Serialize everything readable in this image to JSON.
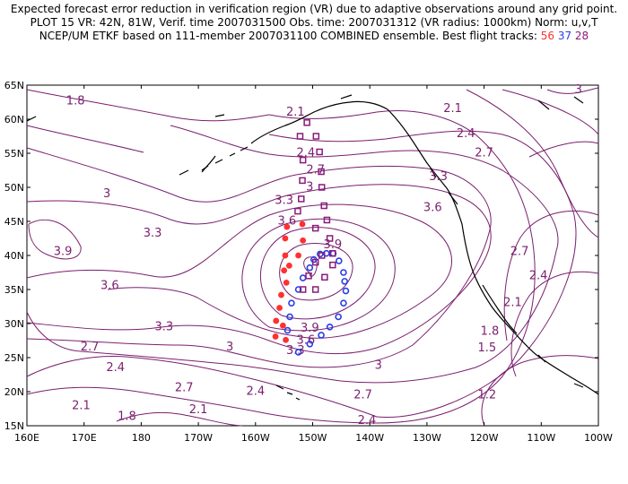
{
  "header": {
    "line1": "Expected forecast error reduction in verification region (VR) due to adaptive observations around any grid point.",
    "line2": "PLOT 15 VR: 42N, 81W, Verif. time 2007031500 Obs. time: 2007031312 (VR radius: 1000km) Norm: u,v,T",
    "line3_prefix": "NCEP/UM ETKF based on 111-member 2007031100 COMBINED ensemble.  Best flight tracks:",
    "track_a": "56",
    "track_b": "37",
    "track_c": "28"
  },
  "colors": {
    "contour": "#7a1f6e",
    "track_56": "#ff3030",
    "track_37": "#2a3ee8",
    "track_28": "#8a1a7a",
    "land": "#000000"
  },
  "map": {
    "lat_labels": [
      "65N",
      "60N",
      "55N",
      "50N",
      "45N",
      "40N",
      "35N",
      "30N",
      "25N",
      "20N",
      "15N"
    ],
    "lon_labels": [
      "160E",
      "170E",
      "180",
      "170W",
      "160W",
      "150W",
      "140W",
      "130W",
      "120W",
      "110W",
      "100W"
    ],
    "lat_range": [
      15,
      65
    ],
    "lon_range": [
      160,
      260
    ]
  },
  "contour_labels": [
    {
      "text": "1.8",
      "lon": 168.5,
      "lat": 62.6
    },
    {
      "text": "2.1",
      "lon": 207.0,
      "lat": 61.0
    },
    {
      "text": "2.1",
      "lon": 234.5,
      "lat": 61.5
    },
    {
      "text": "2.4",
      "lon": 208.8,
      "lat": 55.0
    },
    {
      "text": "2.4",
      "lon": 236.8,
      "lat": 57.8
    },
    {
      "text": "2.7",
      "lon": 210.5,
      "lat": 52.5
    },
    {
      "text": "2.7",
      "lon": 240.0,
      "lat": 55.0
    },
    {
      "text": "3",
      "lon": 209.5,
      "lat": 50.0
    },
    {
      "text": "3",
      "lon": 174.0,
      "lat": 49.0
    },
    {
      "text": "3.3",
      "lon": 205.0,
      "lat": 48.0
    },
    {
      "text": "3.3",
      "lon": 232.0,
      "lat": 51.5
    },
    {
      "text": "3.3",
      "lon": 182.0,
      "lat": 43.2
    },
    {
      "text": "3.6",
      "lon": 205.5,
      "lat": 45.0
    },
    {
      "text": "3.6",
      "lon": 231.0,
      "lat": 47.0
    },
    {
      "text": "3.6",
      "lon": 174.5,
      "lat": 35.5
    },
    {
      "text": "3.9",
      "lon": 166.3,
      "lat": 40.5
    },
    {
      "text": "3.9",
      "lon": 213.5,
      "lat": 41.5
    },
    {
      "text": "3.9",
      "lon": 209.5,
      "lat": 29.3
    },
    {
      "text": "3.6",
      "lon": 208.8,
      "lat": 27.5
    },
    {
      "text": "3.3",
      "lon": 207.0,
      "lat": 26.0
    },
    {
      "text": "3.3",
      "lon": 184.0,
      "lat": 29.5
    },
    {
      "text": "3",
      "lon": 195.5,
      "lat": 26.5
    },
    {
      "text": "3",
      "lon": 221.5,
      "lat": 23.8
    },
    {
      "text": "2.7",
      "lon": 171.0,
      "lat": 26.5
    },
    {
      "text": "2.7",
      "lon": 187.5,
      "lat": 20.5
    },
    {
      "text": "2.7",
      "lon": 218.8,
      "lat": 19.5
    },
    {
      "text": "2.7",
      "lon": 246.2,
      "lat": 40.5
    },
    {
      "text": "2.4",
      "lon": 175.5,
      "lat": 23.5
    },
    {
      "text": "2.4",
      "lon": 200.0,
      "lat": 20.0
    },
    {
      "text": "2.4",
      "lon": 249.5,
      "lat": 37.0
    },
    {
      "text": "2.4",
      "lon": 219.5,
      "lat": 15.7
    },
    {
      "text": "2.1",
      "lon": 169.5,
      "lat": 17.9
    },
    {
      "text": "2.1",
      "lon": 190.0,
      "lat": 17.3
    },
    {
      "text": "2.1",
      "lon": 245.0,
      "lat": 33.0
    },
    {
      "text": "1.8",
      "lon": 177.5,
      "lat": 16.3
    },
    {
      "text": "1.8",
      "lon": 241.0,
      "lat": 28.8
    },
    {
      "text": "1.5",
      "lon": 240.5,
      "lat": 26.4
    },
    {
      "text": "1.2",
      "lon": 240.5,
      "lat": 19.5
    },
    {
      "text": "3",
      "lon": 256.5,
      "lat": 64.3
    }
  ],
  "tracks": {
    "track_56": [
      [
        205.5,
        44.2
      ],
      [
        208.2,
        44.6
      ],
      [
        205.2,
        42.5
      ],
      [
        208.3,
        42.2
      ],
      [
        205.2,
        40.0
      ],
      [
        207.5,
        40.0
      ],
      [
        205.0,
        37.8
      ],
      [
        205.9,
        38.5
      ],
      [
        205.4,
        36.0
      ],
      [
        204.5,
        34.2
      ],
      [
        204.2,
        32.3
      ],
      [
        203.6,
        30.4
      ],
      [
        204.8,
        29.7
      ],
      [
        203.5,
        28.1
      ],
      [
        205.3,
        27.6
      ]
    ],
    "track_37": [
      [
        205.6,
        29.0
      ],
      [
        206.0,
        31.0
      ],
      [
        206.3,
        33.0
      ],
      [
        207.5,
        35.0
      ],
      [
        208.3,
        36.7
      ],
      [
        209.5,
        38.2
      ],
      [
        210.2,
        39.4
      ],
      [
        211.3,
        40.2
      ],
      [
        212.4,
        40.3
      ],
      [
        213.6,
        40.3
      ],
      [
        214.6,
        39.2
      ],
      [
        215.4,
        37.5
      ],
      [
        215.6,
        36.2
      ],
      [
        215.8,
        34.8
      ],
      [
        215.4,
        33.0
      ],
      [
        214.5,
        31.0
      ],
      [
        213.0,
        29.5
      ],
      [
        211.5,
        28.3
      ],
      [
        209.5,
        27.0
      ],
      [
        207.5,
        25.8
      ]
    ],
    "track_28": [
      [
        209.0,
        59.5
      ],
      [
        210.6,
        57.5
      ],
      [
        207.8,
        57.5
      ],
      [
        211.2,
        55.2
      ],
      [
        208.3,
        54.0
      ],
      [
        211.5,
        52.3
      ],
      [
        208.2,
        51.0
      ],
      [
        211.6,
        50.0
      ],
      [
        208.0,
        48.3
      ],
      [
        212.0,
        47.3
      ],
      [
        207.4,
        46.5
      ],
      [
        212.5,
        45.2
      ],
      [
        210.5,
        44.0
      ],
      [
        213.0,
        42.5
      ],
      [
        213.5,
        40.3
      ],
      [
        211.6,
        40.0
      ],
      [
        210.5,
        39.0
      ],
      [
        213.5,
        38.6
      ],
      [
        209.3,
        37.0
      ],
      [
        212.1,
        36.8
      ],
      [
        208.3,
        35.0
      ],
      [
        210.5,
        35.0
      ]
    ]
  }
}
